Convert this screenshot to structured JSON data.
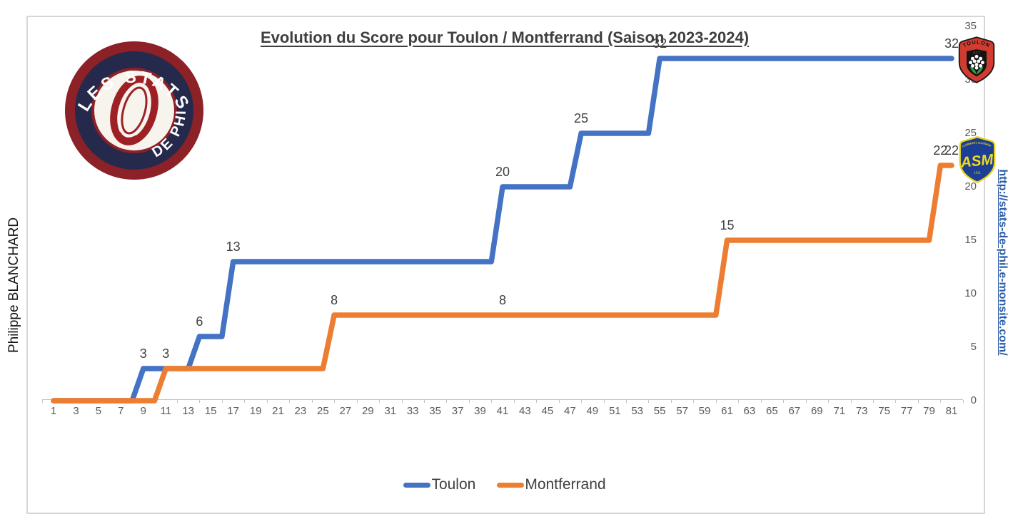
{
  "page": {
    "left_credit": "Philippe BLANCHARD",
    "right_url": "http://stats-de-phil.e-monsite.com/"
  },
  "logo": {
    "top_text": "LES STATS",
    "bottom_text": "DE PHIL"
  },
  "team_badges": {
    "toulon": {
      "name": "TOULON",
      "sub": "RCT"
    },
    "montferrand": {
      "top": "CLERMONT AUVERGNE",
      "name": "ASM",
      "sub": "1911"
    }
  },
  "chart_data": {
    "type": "line",
    "subtype": "step",
    "title": "Evolution du Score pour Toulon / Montferrand (Saison 2023-2024)",
    "x_axis": {
      "min": 1,
      "max": 81,
      "label_step": 2,
      "tick_labels": [
        1,
        3,
        5,
        7,
        9,
        11,
        13,
        15,
        17,
        19,
        21,
        23,
        25,
        27,
        29,
        31,
        33,
        35,
        37,
        39,
        41,
        43,
        45,
        47,
        49,
        51,
        53,
        55,
        57,
        59,
        61,
        63,
        65,
        67,
        69,
        71,
        73,
        75,
        77,
        79,
        81
      ]
    },
    "y_axis": {
      "min": 0,
      "max": 35,
      "step": 5,
      "tick_labels": [
        0,
        5,
        10,
        15,
        20,
        25,
        30,
        35
      ],
      "position": "right"
    },
    "grid": false,
    "series": [
      {
        "name": "Toulon",
        "color": "#4472C4",
        "points": [
          [
            1,
            0
          ],
          [
            8,
            0
          ],
          [
            9,
            3
          ],
          [
            13,
            3
          ],
          [
            14,
            6
          ],
          [
            16,
            6
          ],
          [
            17,
            13
          ],
          [
            40,
            13
          ],
          [
            41,
            20
          ],
          [
            47,
            20
          ],
          [
            48,
            25
          ],
          [
            54,
            25
          ],
          [
            55,
            32
          ],
          [
            81,
            32
          ]
        ],
        "labels": [
          {
            "x": 9,
            "value": 3
          },
          {
            "x": 14,
            "value": 6
          },
          {
            "x": 17,
            "value": 13
          },
          {
            "x": 41,
            "value": 20
          },
          {
            "x": 48,
            "value": 25
          },
          {
            "x": 55,
            "value": 32
          },
          {
            "x": 81,
            "value": 32
          }
        ],
        "final_score": 32
      },
      {
        "name": "Montferrand",
        "color": "#ED7D31",
        "points": [
          [
            1,
            0
          ],
          [
            10,
            0
          ],
          [
            11,
            3
          ],
          [
            25,
            3
          ],
          [
            26,
            8
          ],
          [
            60,
            8
          ],
          [
            61,
            15
          ],
          [
            79,
            15
          ],
          [
            80,
            22
          ],
          [
            81,
            22
          ]
        ],
        "labels": [
          {
            "x": 11,
            "value": 3
          },
          {
            "x": 26,
            "value": 8
          },
          {
            "x": 41,
            "value": 8
          },
          {
            "x": 61,
            "value": 15
          },
          {
            "x": 80,
            "value": 22
          },
          {
            "x": 81,
            "value": 22
          }
        ],
        "final_score": 22
      }
    ],
    "legend": {
      "position": "bottom",
      "items": [
        {
          "label": "Toulon",
          "color": "#4472C4"
        },
        {
          "label": "Montferrand",
          "color": "#ED7D31"
        }
      ]
    }
  }
}
